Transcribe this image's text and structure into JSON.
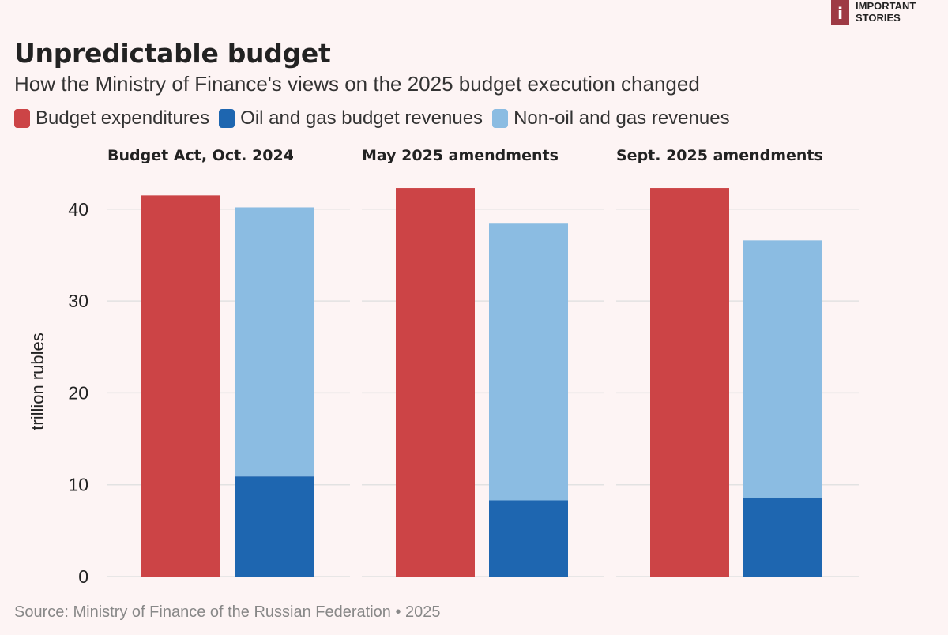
{
  "header": {
    "logo_mark": "i",
    "logo_line1": "IMPORTANT",
    "logo_line2": "STORIES",
    "title": "Unpredictable budget",
    "subtitle": "How the Ministry of Finance's views on the 2025 budget execution changed"
  },
  "colors": {
    "expenditures": "#cc4446",
    "oil_gas": "#1e66b0",
    "non_oil_gas": "#8bbce2",
    "grid": "#e2e2e2"
  },
  "footer": {
    "source": "Source: Ministry of Finance of the Russian Federation • 2025"
  },
  "chart_data": {
    "type": "bar",
    "subtype": "grouped-stacked, faceted",
    "title": "Unpredictable budget",
    "subtitle": "How the Ministry of Finance's views on the 2025 budget execution changed",
    "ylabel": "trillion rubles",
    "xlabel": "",
    "ylim": [
      0,
      42.5
    ],
    "yticks": [
      0,
      10,
      20,
      30,
      40
    ],
    "grid": true,
    "legend_position": "top-left",
    "legend": [
      {
        "key": "expenditures",
        "label": "Budget expenditures"
      },
      {
        "key": "oil_gas",
        "label": "Oil and gas budget revenues"
      },
      {
        "key": "non_oil_gas",
        "label": "Non-oil and gas revenues"
      }
    ],
    "panels": [
      {
        "title": "Budget Act, Oct. 2024",
        "expenditures": 41.5,
        "oil_gas": 10.9,
        "non_oil_gas": 29.3
      },
      {
        "title": "May 2025 amendments",
        "expenditures": 42.3,
        "oil_gas": 8.3,
        "non_oil_gas": 30.2
      },
      {
        "title": "Sept. 2025 amendments",
        "expenditures": 42.3,
        "oil_gas": 8.6,
        "non_oil_gas": 28.0
      }
    ]
  }
}
